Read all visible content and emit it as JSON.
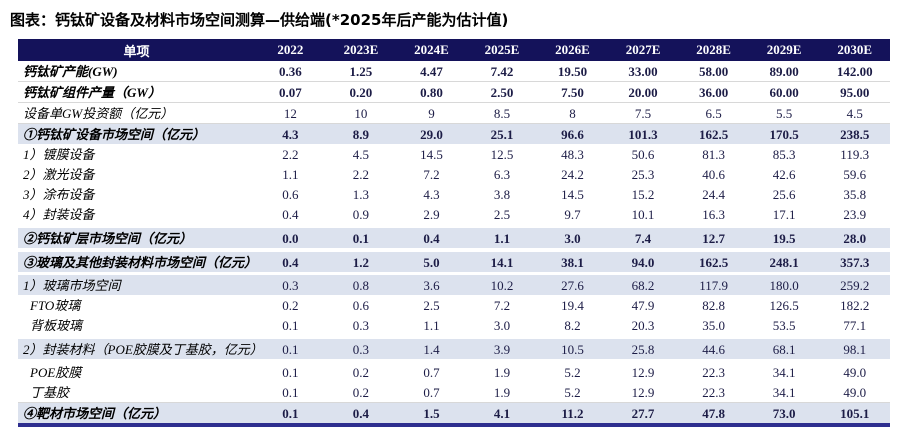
{
  "chart_data": {
    "type": "table",
    "title": "图表：钙钛矿设备及材料市场空间测算—供给端(*2025年后产能为估计值)",
    "columns": [
      "单项",
      "2022",
      "2023E",
      "2024E",
      "2025E",
      "2026E",
      "2027E",
      "2028E",
      "2029E",
      "2030E"
    ],
    "rows": [
      {
        "label": "钙钛矿产能(GW)",
        "bold": true,
        "rule": true,
        "values": [
          "0.36",
          "1.25",
          "4.47",
          "7.42",
          "19.50",
          "33.00",
          "58.00",
          "89.00",
          "142.00"
        ]
      },
      {
        "label": "钙钛矿组件产量（GW）",
        "bold": true,
        "rule": true,
        "values": [
          "0.07",
          "0.20",
          "0.80",
          "2.50",
          "7.50",
          "20.00",
          "36.00",
          "60.00",
          "95.00"
        ]
      },
      {
        "label": "设备单GW投资额（亿元）",
        "rule": true,
        "values": [
          "12",
          "10",
          "9",
          "8.5",
          "8",
          "7.5",
          "6.5",
          "5.5",
          "4.5"
        ]
      },
      {
        "label": "①钙钛矿设备市场空间（亿元）",
        "bold": true,
        "shaded": true,
        "values": [
          "4.3",
          "8.9",
          "29.0",
          "25.1",
          "96.6",
          "101.3",
          "162.5",
          "170.5",
          "238.5"
        ]
      },
      {
        "label": "1）镀膜设备",
        "values": [
          "2.2",
          "4.5",
          "14.5",
          "12.5",
          "48.3",
          "50.6",
          "81.3",
          "85.3",
          "119.3"
        ]
      },
      {
        "label": "2）激光设备",
        "values": [
          "1.1",
          "2.2",
          "7.2",
          "6.3",
          "24.2",
          "25.3",
          "40.6",
          "42.6",
          "59.6"
        ]
      },
      {
        "label": "3）涂布设备",
        "values": [
          "0.6",
          "1.3",
          "4.3",
          "3.8",
          "14.5",
          "15.2",
          "24.4",
          "25.6",
          "35.8"
        ]
      },
      {
        "label": "4）封装设备",
        "rule": true,
        "values": [
          "0.4",
          "0.9",
          "2.9",
          "2.5",
          "9.7",
          "10.1",
          "16.3",
          "17.1",
          "23.9"
        ]
      },
      {
        "label": "②钙钛矿层市场空间（亿元）",
        "bold": true,
        "shaded": true,
        "spaced": true,
        "values": [
          "0.0",
          "0.1",
          "0.4",
          "1.1",
          "3.0",
          "7.4",
          "12.7",
          "19.5",
          "28.0"
        ]
      },
      {
        "label": "③玻璃及其他封装材料市场空间（亿元）",
        "bold": true,
        "shaded": true,
        "spaced": true,
        "values": [
          "0.4",
          "1.2",
          "5.0",
          "14.1",
          "38.1",
          "94.0",
          "162.5",
          "248.1",
          "357.3"
        ]
      },
      {
        "label": "1）玻璃市场空间",
        "shaded": true,
        "values": [
          "0.3",
          "0.8",
          "3.6",
          "10.2",
          "27.6",
          "68.2",
          "117.9",
          "180.0",
          "259.2"
        ]
      },
      {
        "label": "FTO玻璃",
        "indent": true,
        "values": [
          "0.2",
          "0.6",
          "2.5",
          "7.2",
          "19.4",
          "47.9",
          "82.8",
          "126.5",
          "182.2"
        ]
      },
      {
        "label": "背板玻璃",
        "indent": true,
        "rule": true,
        "values": [
          "0.1",
          "0.3",
          "1.1",
          "3.0",
          "8.2",
          "20.3",
          "35.0",
          "53.5",
          "77.1"
        ]
      },
      {
        "label": "2）封装材料（POE胶膜及丁基胶，亿元）",
        "shaded": true,
        "spaced": true,
        "values": [
          "0.1",
          "0.3",
          "1.4",
          "3.9",
          "10.5",
          "25.8",
          "44.6",
          "68.1",
          "98.1"
        ]
      },
      {
        "label": "POE胶膜",
        "indent": true,
        "values": [
          "0.1",
          "0.2",
          "0.7",
          "1.9",
          "5.2",
          "12.9",
          "22.3",
          "34.1",
          "49.0"
        ]
      },
      {
        "label": "丁基胶",
        "indent": true,
        "rule": true,
        "values": [
          "0.1",
          "0.2",
          "0.7",
          "1.9",
          "5.2",
          "12.9",
          "22.3",
          "34.1",
          "49.0"
        ]
      },
      {
        "label": "④靶材市场空间（亿元）",
        "bold": true,
        "shaded": true,
        "values": [
          "0.1",
          "0.4",
          "1.5",
          "4.1",
          "11.2",
          "27.7",
          "47.8",
          "73.0",
          "105.1"
        ]
      }
    ],
    "layout": {
      "header_bg": "#14125a",
      "header_text": "#ffffff",
      "row_highlight_bg": "#dce2ee",
      "bottom_border": "#2e2e8f"
    }
  }
}
